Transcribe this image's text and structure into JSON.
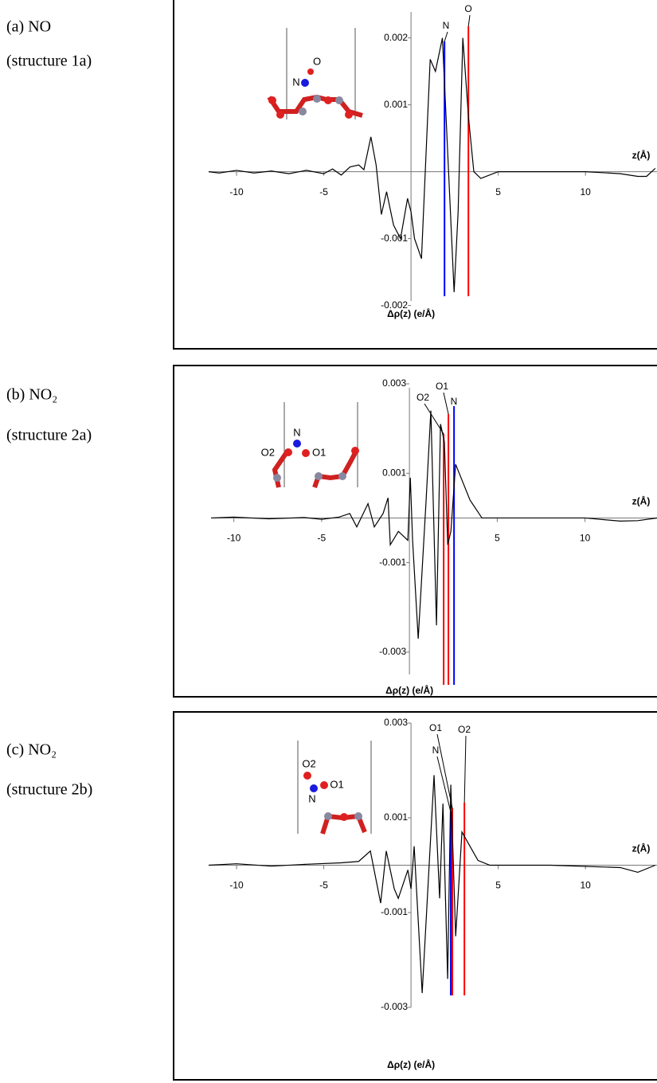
{
  "chart_data": [
    {
      "type": "line",
      "title": "(a) NO",
      "subtitle": "(structure 1a)",
      "x_label": "z(Å)",
      "y_label": "Δρ(z) (e/Å)",
      "inset_labels": [
        "N",
        "O"
      ],
      "x": [
        -11.6,
        -11,
        -10,
        -9,
        -8,
        -7,
        -6,
        -5,
        -4.5,
        -4,
        -3.5,
        -3,
        -2.7,
        -2.3,
        -2,
        -1.7,
        -1.4,
        -1,
        -0.6,
        -0.4,
        -0.2,
        0,
        0.2,
        0.6,
        0.9,
        1.1,
        1.4,
        1.8,
        2.1,
        2.47,
        2.7,
        2.97,
        3.3,
        3.6,
        4,
        5,
        8,
        10,
        12,
        13,
        13.5,
        14
      ],
      "values": [
        0,
        -2e-05,
        2e-05,
        -2e-05,
        1e-05,
        -3e-05,
        2e-05,
        -3e-05,
        4e-05,
        -5e-05,
        7e-05,
        0.0001,
        3e-05,
        0.00052,
        0.0001,
        -0.00064,
        -0.0003,
        -0.0008,
        -0.001,
        -0.0007,
        -0.0004,
        -0.0006,
        -0.001,
        -0.0013,
        0.0005,
        0.00168,
        0.0015,
        0.002,
        0.0003,
        -0.0018,
        -0.0006,
        0.002,
        0.0008,
        0,
        -0.0001,
        0,
        0,
        0,
        -3e-05,
        -7e-05,
        -7e-05,
        5e-05
      ],
      "color": "#000000",
      "markers": [
        {
          "name": "N",
          "x": 1.92,
          "color": "#0000ff"
        },
        {
          "name": "O",
          "x": 3.29,
          "color": "#ff0000"
        }
      ],
      "xlim": [
        -11.6,
        14.1
      ],
      "xticks": [
        -10,
        -5,
        5,
        10
      ],
      "ylim": [
        -0.0021,
        0.0024
      ],
      "yticks": [
        0.002,
        0.001,
        -0.001,
        -0.002
      ]
    },
    {
      "type": "line",
      "title": "(b) NO₂",
      "subtitle": "(structure 2a)",
      "x_label": "z(Å)",
      "y_label": "Δρ(z) (e/Å)",
      "inset_labels": [
        "N",
        "O2",
        "O1"
      ],
      "x": [
        -11.3,
        -10,
        -8,
        -6,
        -5,
        -4,
        -3.4,
        -3,
        -2.36,
        -2,
        -1.5,
        -1.22,
        -1.09,
        -0.63,
        -0.09,
        0.05,
        0.18,
        0.5,
        0.95,
        1.22,
        1.54,
        1.77,
        1.99,
        2.18,
        2.36,
        2.63,
        3.45,
        4.13,
        6,
        10,
        12,
        13,
        14.1
      ],
      "values": [
        0,
        2e-05,
        -2e-05,
        1e-05,
        -3e-05,
        2e-05,
        0.0001,
        -0.0002,
        0.00032,
        -0.0002,
        0.0001,
        0.00045,
        -0.0006,
        -0.0003,
        -0.0005,
        0.0009,
        -0.0005,
        -0.0027,
        0.0004,
        0.0024,
        -0.0024,
        0.0021,
        0.0017,
        -0.0006,
        -0.0003,
        0.0012,
        0.0004,
        0,
        0,
        0,
        -7e-05,
        -6e-05,
        0
      ],
      "color": "#000000",
      "markers": [
        {
          "name": "O2",
          "x": 1.95,
          "color": "#ff0000"
        },
        {
          "name": "O1",
          "x": 2.22,
          "color": "#ff0000"
        },
        {
          "name": "N",
          "x": 2.54,
          "color": "#0000ff"
        }
      ],
      "xlim": [
        -11.3,
        14.1
      ],
      "xticks": [
        -10,
        -5,
        5,
        10
      ],
      "ylim": [
        -0.0035,
        0.003
      ],
      "yticks": [
        0.003,
        0.001,
        -0.001,
        -0.003
      ]
    },
    {
      "type": "line",
      "title": "(c) NO₂",
      "subtitle": "(structure 2b)",
      "x_label": "z(Å)",
      "y_label": "Δρ(z) (e/Å)",
      "inset_labels": [
        "O2",
        "O1",
        "N"
      ],
      "x": [
        -11.6,
        -10,
        -8,
        -6,
        -4,
        -3,
        -2.33,
        -1.74,
        -1.42,
        -0.96,
        -0.73,
        -0.18,
        0,
        0.18,
        0.64,
        1.32,
        1.64,
        1.83,
        2.1,
        2.28,
        2.56,
        2.92,
        3.38,
        3.84,
        4.52,
        8,
        12,
        12.5,
        13,
        14
      ],
      "values": [
        0,
        3e-05,
        -2e-05,
        2e-05,
        5e-05,
        8e-05,
        0.0003,
        -0.0008,
        0.0003,
        -0.0005,
        -0.0007,
        -0.0001,
        -0.0005,
        0.0004,
        -0.0027,
        0.0019,
        -0.0007,
        0.0013,
        -0.0024,
        0.0017,
        -0.0015,
        0.0007,
        0.0004,
        0.0001,
        0,
        0,
        -5e-05,
        -0.0001,
        -0.00015,
        0
      ],
      "color": "#000000",
      "markers": [
        {
          "name": "N",
          "x": 2.28,
          "color": "#0000ff"
        },
        {
          "name": "O1",
          "x": 2.37,
          "color": "#ff0000"
        },
        {
          "name": "O2",
          "x": 3.06,
          "color": "#ff0000"
        }
      ],
      "xlim": [
        -11.6,
        14.1
      ],
      "xticks": [
        -10,
        -5,
        5,
        10
      ],
      "ylim": [
        -0.003,
        0.003
      ],
      "yticks": [
        0.003,
        0.001,
        -0.001,
        -0.003
      ]
    }
  ]
}
